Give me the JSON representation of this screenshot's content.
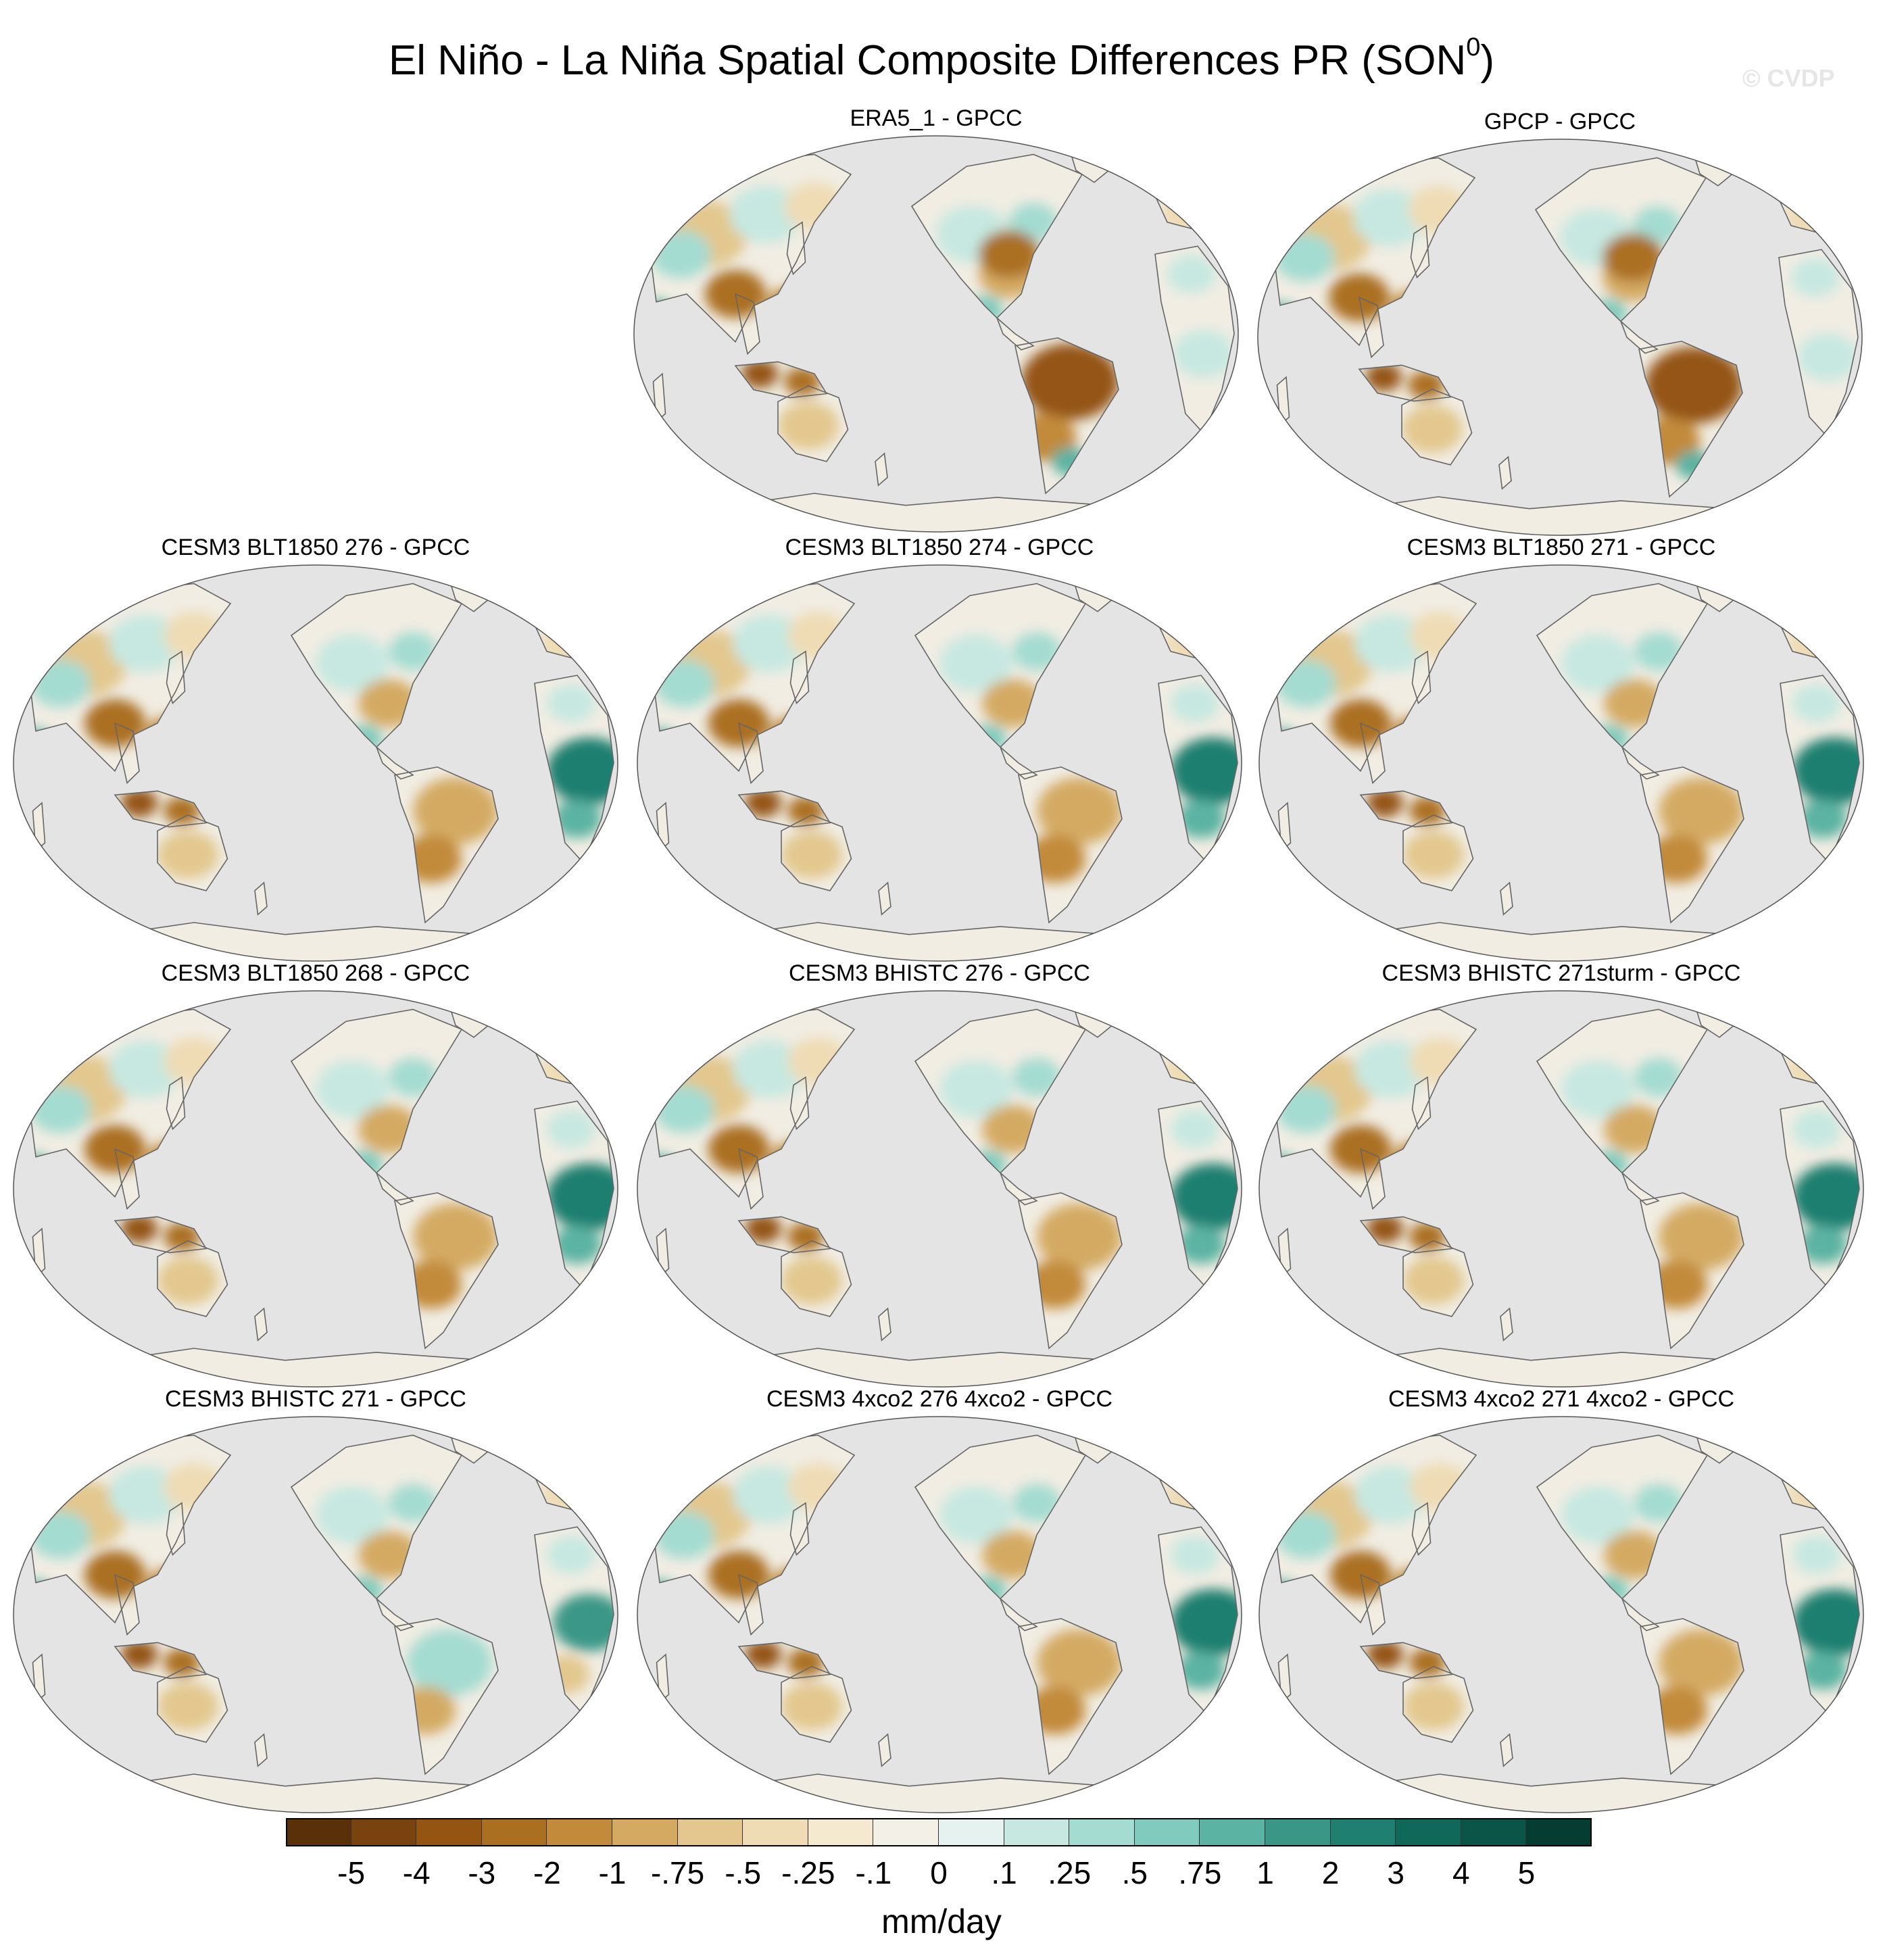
{
  "figure": {
    "title_main": "El Niño - La Niña Spatial Composite Differences PR (SON",
    "title_sup": "0",
    "title_close": ")",
    "watermark": "© CVDP",
    "ocean_color": "#e4e4e4",
    "coast_color": "#666666"
  },
  "panels": [
    {
      "title": "ERA5_1 - GPCC",
      "pattern": "dry_americas"
    },
    {
      "title": "GPCP - GPCC",
      "pattern": "dry_americas"
    },
    {
      "title": "CESM3 BLT1850 276 - GPCC",
      "pattern": "wet_africa"
    },
    {
      "title": "CESM3 BLT1850 274 - GPCC",
      "pattern": "wet_africa"
    },
    {
      "title": "CESM3 BLT1850 271 - GPCC",
      "pattern": "wet_africa"
    },
    {
      "title": "CESM3 BLT1850 268 - GPCC",
      "pattern": "wet_africa"
    },
    {
      "title": "CESM3 BHISTC 276 - GPCC",
      "pattern": "wet_africa"
    },
    {
      "title": "CESM3 BHISTC 271sturm - GPCC",
      "pattern": "wet_africa"
    },
    {
      "title": "CESM3 BHISTC 271 - GPCC",
      "pattern": "mixed"
    },
    {
      "title": "CESM3 4xco2 276 4xco2 - GPCC",
      "pattern": "wet_africa"
    },
    {
      "title": "CESM3 4xco2 271 4xco2 - GPCC",
      "pattern": "wet_africa"
    }
  ],
  "colorbar": {
    "units": "mm/day",
    "colors": [
      "#5a3009",
      "#7a420e",
      "#945512",
      "#ab6f22",
      "#c28a3b",
      "#d4aa63",
      "#e3c78e",
      "#efdcb5",
      "#f5ead0",
      "#f3f0e8",
      "#e5f2ef",
      "#c6e8e1",
      "#a4dcd2",
      "#80cbbd",
      "#5bb3a3",
      "#3a9787",
      "#1f7f70",
      "#0f685a",
      "#0a5548",
      "#053d33"
    ],
    "labels": [
      "-5",
      "-4",
      "-3",
      "-2",
      "-1",
      "-.75",
      "-.5",
      "-.25",
      "-.1",
      "0",
      ".1",
      ".25",
      ".5",
      ".75",
      "1",
      "2",
      "3",
      "4",
      "5"
    ]
  }
}
